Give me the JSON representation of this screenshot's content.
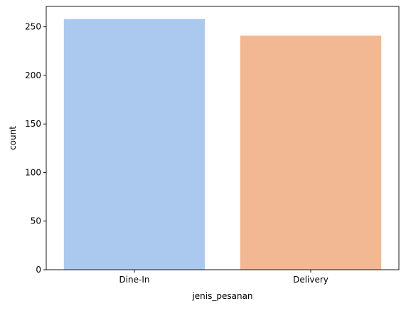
{
  "chart_data": {
    "type": "bar",
    "categories": [
      "Dine-In",
      "Delivery"
    ],
    "values": [
      258,
      241
    ],
    "colors": [
      "#abc9ee",
      "#f1b893"
    ],
    "xlabel": "jenis_pesanan",
    "ylabel": "count",
    "ylim": [
      0,
      271
    ],
    "yticks": [
      0,
      50,
      100,
      150,
      200,
      250
    ],
    "grid": false,
    "legend": "none"
  }
}
